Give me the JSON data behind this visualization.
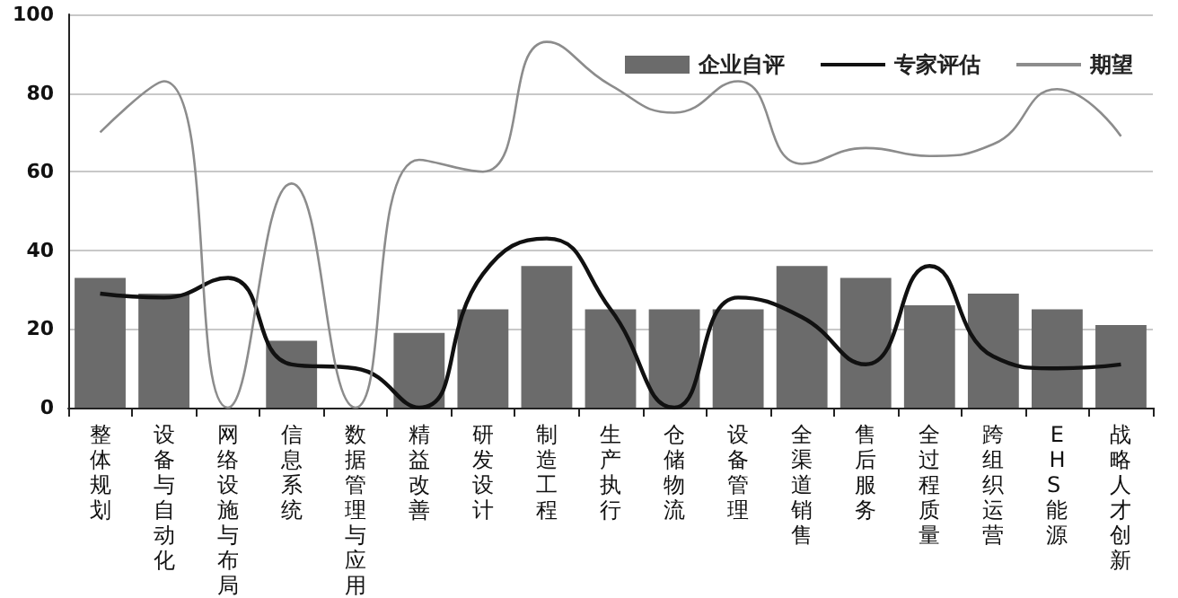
{
  "chart_data": {
    "type": "bar",
    "categories": [
      "整体规划",
      "设备与自动化",
      "网络设施与布局",
      "信息系统",
      "数据管理与应用",
      "精益改善",
      "研发设计",
      "制造工程",
      "生产执行",
      "仓储物流",
      "设备管理",
      "全渠道销售",
      "售后服务",
      "全过程质量",
      "跨组织运营",
      "EHS 能源",
      "战略人才创新"
    ],
    "series": [
      {
        "name": "企业自评",
        "color": "#6b6b6b",
        "values": [
          33,
          29,
          0,
          17,
          0,
          19,
          25,
          36,
          25,
          25,
          25,
          36,
          33,
          26,
          29,
          25,
          21
        ]
      },
      {
        "name": "专家评估",
        "type": "line",
        "color": "#111111",
        "values": [
          29,
          28,
          33,
          11,
          10,
          0,
          34,
          43,
          25,
          0,
          28,
          23,
          11,
          36,
          13,
          10,
          11
        ]
      },
      {
        "name": "期望",
        "type": "line",
        "color": "#8c8c8c",
        "values": [
          70,
          83,
          0,
          57,
          0,
          63,
          60,
          93,
          82,
          75,
          83,
          62,
          66,
          64,
          67,
          81,
          69
        ]
      }
    ],
    "ylim": [
      0,
      100
    ],
    "yticks": [
      0,
      20,
      40,
      60,
      80,
      100
    ],
    "grid": "y",
    "legend": "top right",
    "marker": "none"
  }
}
